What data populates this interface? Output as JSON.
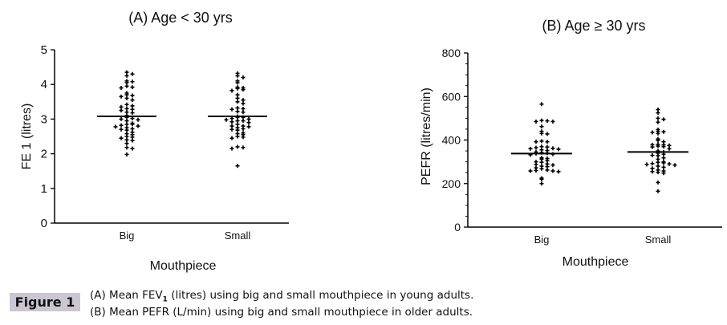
{
  "chart_data": [
    {
      "type": "scatter",
      "title": "(A) Age < 30 yrs",
      "xlabel": "Mouthpiece",
      "ylabel": "FE 1 (litres)",
      "ylim": [
        0,
        5
      ],
      "yticks": [
        "0",
        "1",
        "2",
        "3",
        "4",
        "5"
      ],
      "categories": [
        "Big",
        "Small"
      ],
      "means": [
        3.08,
        3.08
      ],
      "series": [
        {
          "name": "Big",
          "values": [
            4.35,
            4.3,
            4.25,
            4.1,
            4.08,
            4.05,
            3.95,
            3.92,
            3.9,
            3.75,
            3.7,
            3.68,
            3.65,
            3.6,
            3.55,
            3.42,
            3.38,
            3.35,
            3.3,
            3.28,
            3.25,
            3.2,
            3.18,
            3.1,
            3.05,
            3.02,
            3.0,
            2.98,
            2.95,
            2.88,
            2.85,
            2.85,
            2.82,
            2.8,
            2.78,
            2.75,
            2.72,
            2.7,
            2.68,
            2.62,
            2.58,
            2.55,
            2.5,
            2.48,
            2.45,
            2.4,
            2.38,
            2.3,
            2.18,
            2.15,
            1.98
          ]
        },
        {
          "name": "Small",
          "values": [
            4.32,
            4.25,
            4.2,
            4.1,
            4.05,
            3.92,
            3.9,
            3.88,
            3.85,
            3.82,
            3.7,
            3.6,
            3.55,
            3.5,
            3.45,
            3.32,
            3.3,
            3.28,
            3.22,
            3.2,
            3.08,
            3.05,
            3.05,
            3.02,
            3.0,
            2.98,
            2.95,
            2.95,
            2.92,
            2.9,
            2.85,
            2.8,
            2.8,
            2.78,
            2.75,
            2.72,
            2.7,
            2.68,
            2.6,
            2.58,
            2.55,
            2.5,
            2.48,
            2.45,
            2.2,
            2.18,
            2.15,
            1.65
          ]
        }
      ]
    },
    {
      "type": "scatter",
      "title": "(B) Age ≥ 30 yrs",
      "xlabel": "Mouthpiece",
      "ylabel": "PEFR (litres/min)",
      "ylim": [
        0,
        800
      ],
      "yticks": [
        "0",
        "200",
        "400",
        "600",
        "800"
      ],
      "categories": [
        "Big",
        "Small"
      ],
      "means": [
        338,
        345
      ],
      "series": [
        {
          "name": "Big",
          "values": [
            565,
            490,
            488,
            485,
            485,
            462,
            440,
            430,
            428,
            395,
            392,
            392,
            370,
            368,
            365,
            362,
            360,
            358,
            355,
            352,
            345,
            342,
            340,
            338,
            335,
            332,
            318,
            315,
            312,
            305,
            300,
            298,
            290,
            288,
            285,
            280,
            278,
            272,
            268,
            262,
            260,
            258,
            258,
            255,
            225,
            220,
            200
          ]
        },
        {
          "name": "Small",
          "values": [
            540,
            525,
            500,
            495,
            482,
            448,
            440,
            438,
            435,
            430,
            405,
            398,
            392,
            380,
            378,
            378,
            375,
            372,
            370,
            368,
            360,
            350,
            345,
            340,
            335,
            330,
            328,
            318,
            312,
            300,
            298,
            295,
            292,
            290,
            288,
            285,
            280,
            275,
            270,
            262,
            258,
            255,
            252,
            248,
            205,
            165
          ]
        }
      ]
    }
  ],
  "caption": {
    "figure_label": "Figure 1",
    "line_a_pre": "(A) Mean FEV",
    "line_a_sub": "1",
    "line_a_post": " (litres) using big and small mouthpiece in young adults.",
    "line_b": "(B) Mean PEFR (L/min) using big and small mouthpiece in older adults."
  }
}
